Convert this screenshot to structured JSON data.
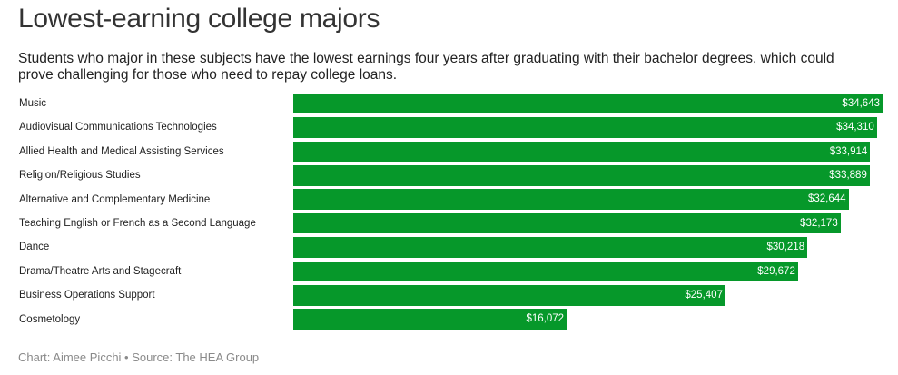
{
  "header": {
    "title": "Lowest-earning college majors",
    "subtitle": "Students who major in these subjects have the lowest earnings four years after graduating with their bachelor degrees, which could prove challenging for those who need to repay college loans."
  },
  "footer": {
    "source": "Chart: Aimee Picchi • Source: The HEA Group"
  },
  "colors": {
    "bar": "#06982a",
    "bar_label": "#ffffff",
    "source_text": "#8a8a8a"
  },
  "chart_data": {
    "type": "bar",
    "orientation": "horizontal",
    "title": "Lowest-earning college majors",
    "subtitle": "Students who major in these subjects have the lowest earnings four years after graduating with their bachelor degrees, which could prove challenging for those who need to repay college loans.",
    "categories": [
      "Music",
      "Audiovisual Communications Technologies",
      "Allied Health and Medical Assisting Services",
      "Religion/Religious Studies",
      "Alternative and Complementary Medicine",
      "Teaching English or French as a Second Language",
      "Dance",
      "Drama/Theatre Arts and Stagecraft",
      "Business Operations Support",
      "Cosmetology"
    ],
    "values": [
      34643,
      34310,
      33914,
      33889,
      32644,
      32173,
      30218,
      29672,
      25407,
      16072
    ],
    "value_labels": [
      "$34,643",
      "$34,310",
      "$33,914",
      "$33,889",
      "$32,644",
      "$32,173",
      "$30,218",
      "$29,672",
      "$25,407",
      "$16,072"
    ],
    "xlabel": "",
    "ylabel": "",
    "grid": false,
    "legend": false
  }
}
